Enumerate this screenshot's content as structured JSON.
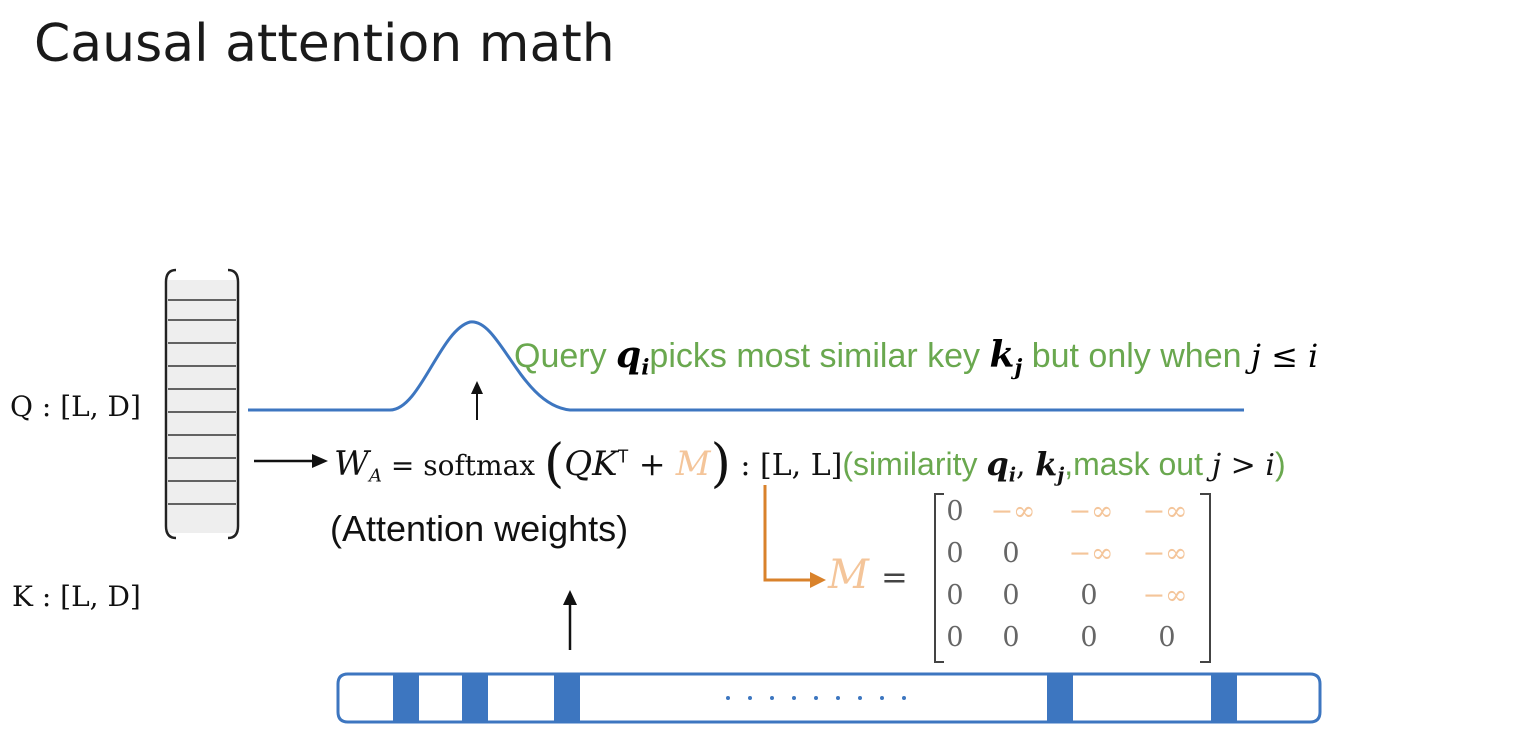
{
  "slide": {
    "title": "Causal attention math"
  },
  "left": {
    "q_label": "Q : [L, D]",
    "k_label": "K : [L, D]"
  },
  "query_text": {
    "part1": "Query ",
    "qi": "q",
    "qi_sub": "i",
    "part2": "picks most similar key ",
    "kj": "k",
    "kj_sub": "j",
    "part3": " but only when ",
    "cond": "j ≤ i"
  },
  "formula": {
    "wa": "W",
    "wa_sub": "A",
    "eq": " = softmax ",
    "lparen": "(",
    "qk": "QK",
    "sup": "T",
    "plus": " + ",
    "m": "M",
    "rparen": ")",
    "shape": " : [L, L]",
    "sim_open": "(similarity ",
    "sim_qi": "q",
    "sim_qi_sub": "i",
    "comma": ", ",
    "sim_kj": "k",
    "sim_kj_sub": "j",
    "mask": ",mask out ",
    "mask_cond": "j > i",
    "sim_close": ")"
  },
  "caption": "(Attention weights)",
  "mask_eq": {
    "m": "M",
    "eq": "="
  },
  "matrix": [
    [
      "0",
      "−∞",
      "−∞",
      "−∞"
    ],
    [
      "0",
      "0",
      "−∞",
      "−∞"
    ],
    [
      "0",
      "0",
      "0",
      "−∞"
    ],
    [
      "0",
      "0",
      "0",
      "0"
    ]
  ],
  "colors": {
    "blue": "#3d76c0",
    "green": "#6aa84f",
    "orange": "#d9822b",
    "peach": "#f4c59a"
  },
  "icons": {
    "up_arrow": "up-arrow-icon",
    "right_arrow": "right-arrow-icon"
  }
}
